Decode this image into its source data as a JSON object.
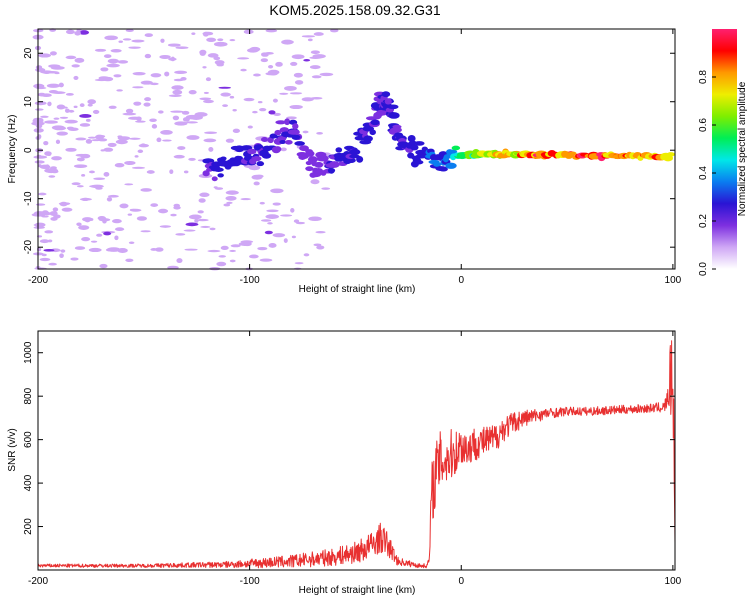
{
  "figure_title": "KOM5.2025.158.09.32.G31",
  "chart_data": [
    {
      "type": "heatmap",
      "title": "KOM5.2025.158.09.32.G31",
      "xlabel": "Height of straight line (km)",
      "ylabel": "Frequency (Hz)",
      "xlim": [
        -200,
        101
      ],
      "ylim": [
        -24.5,
        25
      ],
      "xticks": [
        -200,
        -100,
        0,
        100
      ],
      "yticks": [
        -20,
        -10,
        0,
        10,
        20
      ],
      "colorbar": {
        "label": "Normalized spectral amplitude",
        "range": [
          0,
          1
        ],
        "ticks": [
          0.0,
          0.2,
          0.4,
          0.6,
          0.8
        ],
        "tick_labels": [
          "0.0",
          "0.2",
          "0.4",
          "0.6",
          "0.8"
        ],
        "colors": [
          "#ffffff",
          "#cfa7f5",
          "#7d2fe0",
          "#2a14d4",
          "#0a7df0",
          "#00e8e8",
          "#00ee55",
          "#7fee00",
          "#eeee00",
          "#ff9900",
          "#ff0000",
          "#ff2070"
        ]
      },
      "signal_track": [
        {
          "x": -120,
          "f": -4.0,
          "a": 0.22
        },
        {
          "x": -110,
          "f": -3.0,
          "a": 0.3
        },
        {
          "x": -100,
          "f": -1.5,
          "a": 0.28
        },
        {
          "x": -90,
          "f": 1.0,
          "a": 0.25
        },
        {
          "x": -80,
          "f": 5.0,
          "a": 0.25
        },
        {
          "x": -70,
          "f": -4.0,
          "a": 0.2
        },
        {
          "x": -60,
          "f": -2.0,
          "a": 0.25
        },
        {
          "x": -50,
          "f": 0.0,
          "a": 0.28
        },
        {
          "x": -40,
          "f": 7.0,
          "a": 0.25
        },
        {
          "x": -35,
          "f": 11.0,
          "a": 0.25
        },
        {
          "x": -30,
          "f": 2.5,
          "a": 0.25
        },
        {
          "x": -20,
          "f": -1.0,
          "a": 0.3
        },
        {
          "x": -10,
          "f": -1.5,
          "a": 0.35
        },
        {
          "x": 0,
          "f": -1.2,
          "a": 0.55
        },
        {
          "x": 10,
          "f": -0.8,
          "a": 0.7
        },
        {
          "x": 20,
          "f": -0.8,
          "a": 0.8
        },
        {
          "x": 30,
          "f": -0.9,
          "a": 0.9
        },
        {
          "x": 40,
          "f": -1.0,
          "a": 0.95
        },
        {
          "x": 60,
          "f": -1.1,
          "a": 0.95
        },
        {
          "x": 80,
          "f": -1.2,
          "a": 0.9
        },
        {
          "x": 100,
          "f": -1.3,
          "a": 0.8
        }
      ]
    },
    {
      "type": "line",
      "xlabel": "Height of straight line (km)",
      "ylabel": "SNR (v/v)",
      "xlim": [
        -200,
        101
      ],
      "ylim": [
        0,
        1100
      ],
      "xticks": [
        -200,
        -100,
        0,
        100
      ],
      "yticks": [
        200,
        400,
        600,
        800,
        1000
      ],
      "color": "#e83030",
      "x": [
        -200,
        -150,
        -110,
        -90,
        -80,
        -70,
        -60,
        -50,
        -45,
        -40,
        -38,
        -35,
        -30,
        -20,
        -16,
        -15,
        -14,
        -12,
        -10,
        -6,
        -3,
        0,
        3,
        6,
        10,
        15,
        20,
        25,
        30,
        40,
        50,
        60,
        70,
        80,
        90,
        96,
        98,
        99,
        100,
        101
      ],
      "y": [
        20,
        20,
        25,
        35,
        40,
        50,
        60,
        80,
        100,
        130,
        150,
        120,
        40,
        20,
        20,
        60,
        350,
        450,
        500,
        520,
        540,
        570,
        560,
        580,
        590,
        600,
        650,
        680,
        700,
        720,
        730,
        730,
        735,
        740,
        745,
        750,
        800,
        900,
        850,
        400
      ],
      "amplitude": [
        8,
        8,
        15,
        25,
        30,
        35,
        40,
        50,
        60,
        60,
        70,
        60,
        20,
        10,
        10,
        40,
        150,
        150,
        140,
        130,
        110,
        90,
        90,
        80,
        70,
        70,
        60,
        50,
        40,
        25,
        20,
        20,
        20,
        20,
        20,
        25,
        60,
        200,
        150,
        300
      ]
    }
  ]
}
